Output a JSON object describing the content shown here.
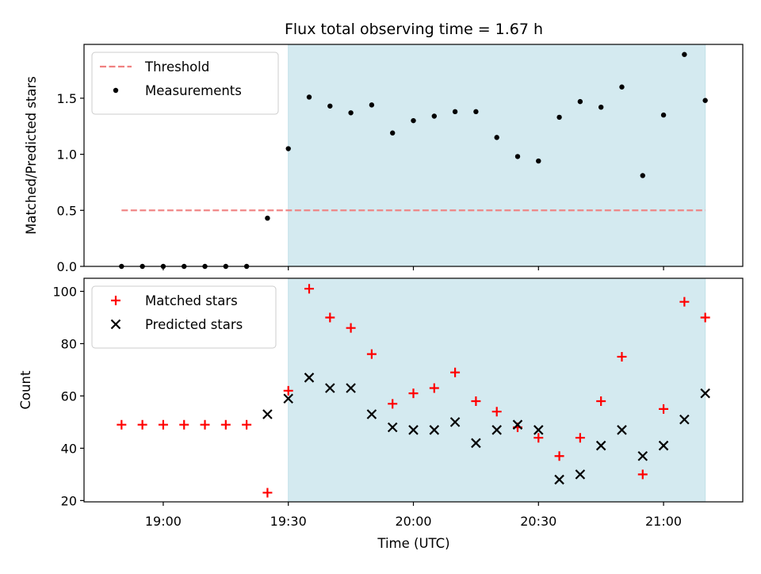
{
  "chart_data": {
    "type": "scatter",
    "title": "Flux total observing time = 1.67 h",
    "xlabel": "Time (UTC)",
    "x_ticks": [
      "19:00",
      "19:30",
      "20:00",
      "20:30",
      "21:00"
    ],
    "x": [
      "18:50",
      "18:55",
      "19:00",
      "19:05",
      "19:10",
      "19:15",
      "19:20",
      "19:25",
      "19:30",
      "19:35",
      "19:40",
      "19:45",
      "19:50",
      "19:55",
      "20:00",
      "20:05",
      "20:10",
      "20:15",
      "20:20",
      "20:25",
      "20:30",
      "20:35",
      "20:40",
      "20:45",
      "20:50",
      "20:55",
      "21:00",
      "21:05",
      "21:10"
    ],
    "shaded_interval": [
      "19:30",
      "21:10"
    ],
    "shade_color": "#d4eaf0",
    "panels": [
      {
        "ylabel": "Matched/Predicted stars",
        "ylim": [
          0,
          1.98
        ],
        "y_ticks": [
          "0.0",
          "0.5",
          "1.0",
          "1.5"
        ],
        "threshold": {
          "name": "Threshold",
          "value": 0.5,
          "color": "#f08080"
        },
        "series": [
          {
            "name": "Measurements",
            "marker": "dot",
            "color": "#000000",
            "values": [
              0,
              0,
              0,
              0,
              0,
              0,
              0,
              0.43,
              1.05,
              1.51,
              1.43,
              1.37,
              1.44,
              1.19,
              1.3,
              1.34,
              1.38,
              1.38,
              1.15,
              0.98,
              0.94,
              1.33,
              1.47,
              1.42,
              1.6,
              0.81,
              1.35,
              1.89,
              1.48
            ]
          }
        ],
        "legend": "upper-left"
      },
      {
        "ylabel": "Count",
        "ylim": [
          19.5,
          105
        ],
        "y_ticks": [
          "20",
          "40",
          "60",
          "80",
          "100"
        ],
        "series": [
          {
            "name": "Matched stars",
            "marker": "plus",
            "color": "#ff0000",
            "values": [
              49,
              49,
              49,
              49,
              49,
              49,
              49,
              23,
              62,
              101,
              90,
              86,
              76,
              57,
              61,
              63,
              69,
              58,
              54,
              48,
              44,
              37,
              44,
              58,
              75,
              30,
              55,
              96,
              90
            ]
          },
          {
            "name": "Predicted stars",
            "marker": "x",
            "color": "#000000",
            "values": [
              null,
              null,
              null,
              null,
              null,
              null,
              null,
              53,
              59,
              67,
              63,
              63,
              53,
              48,
              47,
              47,
              50,
              42,
              47,
              49,
              47,
              28,
              30,
              41,
              47,
              37,
              41,
              51,
              61
            ]
          }
        ],
        "legend": "upper-left"
      }
    ]
  }
}
